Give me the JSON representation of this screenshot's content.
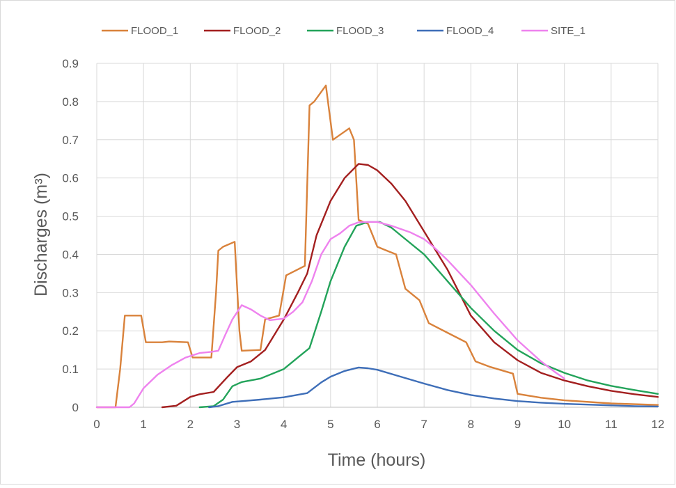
{
  "chart_data": {
    "type": "line",
    "title": "",
    "xlabel": "Time (hours)",
    "ylabel": "Discharges  (m³)",
    "xlim": [
      0,
      12
    ],
    "ylim": [
      0,
      0.9
    ],
    "x_ticks": [
      0,
      1,
      2,
      3,
      4,
      5,
      6,
      7,
      8,
      9,
      10,
      11,
      12
    ],
    "x_tick_labels": [
      "0",
      "1",
      "2",
      "3",
      "4",
      "5",
      "6",
      "7",
      "8",
      "9",
      "10",
      "11",
      "12"
    ],
    "y_ticks": [
      0,
      0.1,
      0.2,
      0.3,
      0.4,
      0.5,
      0.6,
      0.7,
      0.8,
      0.9
    ],
    "y_tick_labels": [
      "0",
      "0.1",
      "0.2",
      "0.3",
      "0.4",
      "0.5",
      "0.6",
      "0.7",
      "0.8",
      "0.9"
    ],
    "grid": true,
    "legend_position": "top",
    "series": [
      {
        "name": "FLOOD_1",
        "color": "#d9823b",
        "points": [
          [
            0,
            0
          ],
          [
            0.4,
            0
          ],
          [
            0.5,
            0.1
          ],
          [
            0.6,
            0.24
          ],
          [
            0.95,
            0.24
          ],
          [
            1.05,
            0.17
          ],
          [
            1.4,
            0.17
          ],
          [
            1.55,
            0.172
          ],
          [
            1.95,
            0.17
          ],
          [
            2.05,
            0.13
          ],
          [
            2.45,
            0.13
          ],
          [
            2.55,
            0.3
          ],
          [
            2.6,
            0.41
          ],
          [
            2.7,
            0.42
          ],
          [
            2.95,
            0.433
          ],
          [
            3.05,
            0.2
          ],
          [
            3.1,
            0.148
          ],
          [
            3.5,
            0.15
          ],
          [
            3.6,
            0.23
          ],
          [
            3.9,
            0.24
          ],
          [
            4.05,
            0.345
          ],
          [
            4.45,
            0.37
          ],
          [
            4.55,
            0.79
          ],
          [
            4.65,
            0.8
          ],
          [
            4.9,
            0.842
          ],
          [
            5.05,
            0.7
          ],
          [
            5.4,
            0.73
          ],
          [
            5.5,
            0.7
          ],
          [
            5.6,
            0.49
          ],
          [
            5.8,
            0.48
          ],
          [
            6.0,
            0.42
          ],
          [
            6.2,
            0.41
          ],
          [
            6.4,
            0.4
          ],
          [
            6.6,
            0.31
          ],
          [
            6.9,
            0.28
          ],
          [
            7.1,
            0.22
          ],
          [
            7.5,
            0.195
          ],
          [
            7.9,
            0.17
          ],
          [
            8.1,
            0.12
          ],
          [
            8.4,
            0.106
          ],
          [
            8.9,
            0.088
          ],
          [
            9.0,
            0.035
          ],
          [
            9.5,
            0.025
          ],
          [
            10,
            0.018
          ],
          [
            11,
            0.01
          ],
          [
            12,
            0.006
          ]
        ]
      },
      {
        "name": "FLOOD_2",
        "color": "#a31f1f",
        "points": [
          [
            1.4,
            0
          ],
          [
            1.7,
            0.004
          ],
          [
            2.0,
            0.027
          ],
          [
            2.2,
            0.034
          ],
          [
            2.5,
            0.04
          ],
          [
            2.8,
            0.08
          ],
          [
            3.0,
            0.105
          ],
          [
            3.3,
            0.12
          ],
          [
            3.6,
            0.15
          ],
          [
            4.0,
            0.23
          ],
          [
            4.3,
            0.3
          ],
          [
            4.5,
            0.35
          ],
          [
            4.7,
            0.45
          ],
          [
            5.0,
            0.54
          ],
          [
            5.3,
            0.6
          ],
          [
            5.6,
            0.637
          ],
          [
            5.8,
            0.634
          ],
          [
            6.0,
            0.62
          ],
          [
            6.3,
            0.585
          ],
          [
            6.6,
            0.54
          ],
          [
            7.0,
            0.46
          ],
          [
            7.5,
            0.36
          ],
          [
            8.0,
            0.24
          ],
          [
            8.5,
            0.17
          ],
          [
            9.0,
            0.123
          ],
          [
            9.5,
            0.09
          ],
          [
            10,
            0.07
          ],
          [
            10.5,
            0.055
          ],
          [
            11,
            0.043
          ],
          [
            11.5,
            0.034
          ],
          [
            12,
            0.027
          ]
        ]
      },
      {
        "name": "FLOOD_3",
        "color": "#23a35a",
        "points": [
          [
            2.2,
            0
          ],
          [
            2.5,
            0.003
          ],
          [
            2.7,
            0.02
          ],
          [
            2.9,
            0.055
          ],
          [
            3.1,
            0.066
          ],
          [
            3.5,
            0.075
          ],
          [
            4.0,
            0.1
          ],
          [
            4.3,
            0.13
          ],
          [
            4.55,
            0.155
          ],
          [
            4.8,
            0.25
          ],
          [
            5.0,
            0.33
          ],
          [
            5.3,
            0.42
          ],
          [
            5.55,
            0.475
          ],
          [
            5.8,
            0.485
          ],
          [
            6.05,
            0.485
          ],
          [
            6.3,
            0.47
          ],
          [
            6.6,
            0.44
          ],
          [
            7.0,
            0.4
          ],
          [
            7.5,
            0.33
          ],
          [
            8.0,
            0.26
          ],
          [
            8.5,
            0.2
          ],
          [
            9.0,
            0.15
          ],
          [
            9.5,
            0.115
          ],
          [
            10,
            0.09
          ],
          [
            10.5,
            0.07
          ],
          [
            11,
            0.056
          ],
          [
            11.5,
            0.045
          ],
          [
            12,
            0.035
          ]
        ]
      },
      {
        "name": "FLOOD_4",
        "color": "#3e6eb8",
        "points": [
          [
            2.4,
            0
          ],
          [
            2.6,
            0.003
          ],
          [
            2.9,
            0.014
          ],
          [
            3.2,
            0.017
          ],
          [
            3.5,
            0.02
          ],
          [
            4.0,
            0.026
          ],
          [
            4.5,
            0.037
          ],
          [
            4.8,
            0.065
          ],
          [
            5.0,
            0.08
          ],
          [
            5.3,
            0.095
          ],
          [
            5.6,
            0.104
          ],
          [
            5.8,
            0.102
          ],
          [
            6.0,
            0.098
          ],
          [
            6.5,
            0.08
          ],
          [
            7.0,
            0.062
          ],
          [
            7.5,
            0.045
          ],
          [
            8.0,
            0.032
          ],
          [
            8.5,
            0.023
          ],
          [
            9.0,
            0.016
          ],
          [
            9.5,
            0.012
          ],
          [
            10,
            0.009
          ],
          [
            10.5,
            0.007
          ],
          [
            11,
            0.005
          ],
          [
            11.5,
            0.003
          ],
          [
            12,
            0.002
          ]
        ]
      },
      {
        "name": "SITE_1",
        "color": "#ee82ee",
        "points": [
          [
            0,
            0
          ],
          [
            0.7,
            0
          ],
          [
            0.8,
            0.01
          ],
          [
            1.0,
            0.05
          ],
          [
            1.3,
            0.085
          ],
          [
            1.6,
            0.11
          ],
          [
            1.9,
            0.13
          ],
          [
            2.2,
            0.142
          ],
          [
            2.45,
            0.145
          ],
          [
            2.6,
            0.148
          ],
          [
            2.75,
            0.19
          ],
          [
            2.9,
            0.23
          ],
          [
            3.1,
            0.267
          ],
          [
            3.3,
            0.256
          ],
          [
            3.5,
            0.24
          ],
          [
            3.7,
            0.228
          ],
          [
            4.0,
            0.232
          ],
          [
            4.2,
            0.25
          ],
          [
            4.4,
            0.275
          ],
          [
            4.6,
            0.33
          ],
          [
            4.8,
            0.4
          ],
          [
            5.0,
            0.44
          ],
          [
            5.2,
            0.455
          ],
          [
            5.4,
            0.475
          ],
          [
            5.6,
            0.484
          ],
          [
            5.8,
            0.485
          ],
          [
            6.0,
            0.485
          ],
          [
            6.3,
            0.475
          ],
          [
            6.7,
            0.458
          ],
          [
            7.0,
            0.44
          ],
          [
            7.2,
            0.42
          ],
          [
            7.5,
            0.385
          ],
          [
            8.0,
            0.32
          ],
          [
            8.5,
            0.245
          ],
          [
            9.0,
            0.175
          ],
          [
            9.5,
            0.12
          ],
          [
            9.8,
            0.092
          ],
          [
            10.0,
            0.075
          ]
        ]
      }
    ]
  }
}
